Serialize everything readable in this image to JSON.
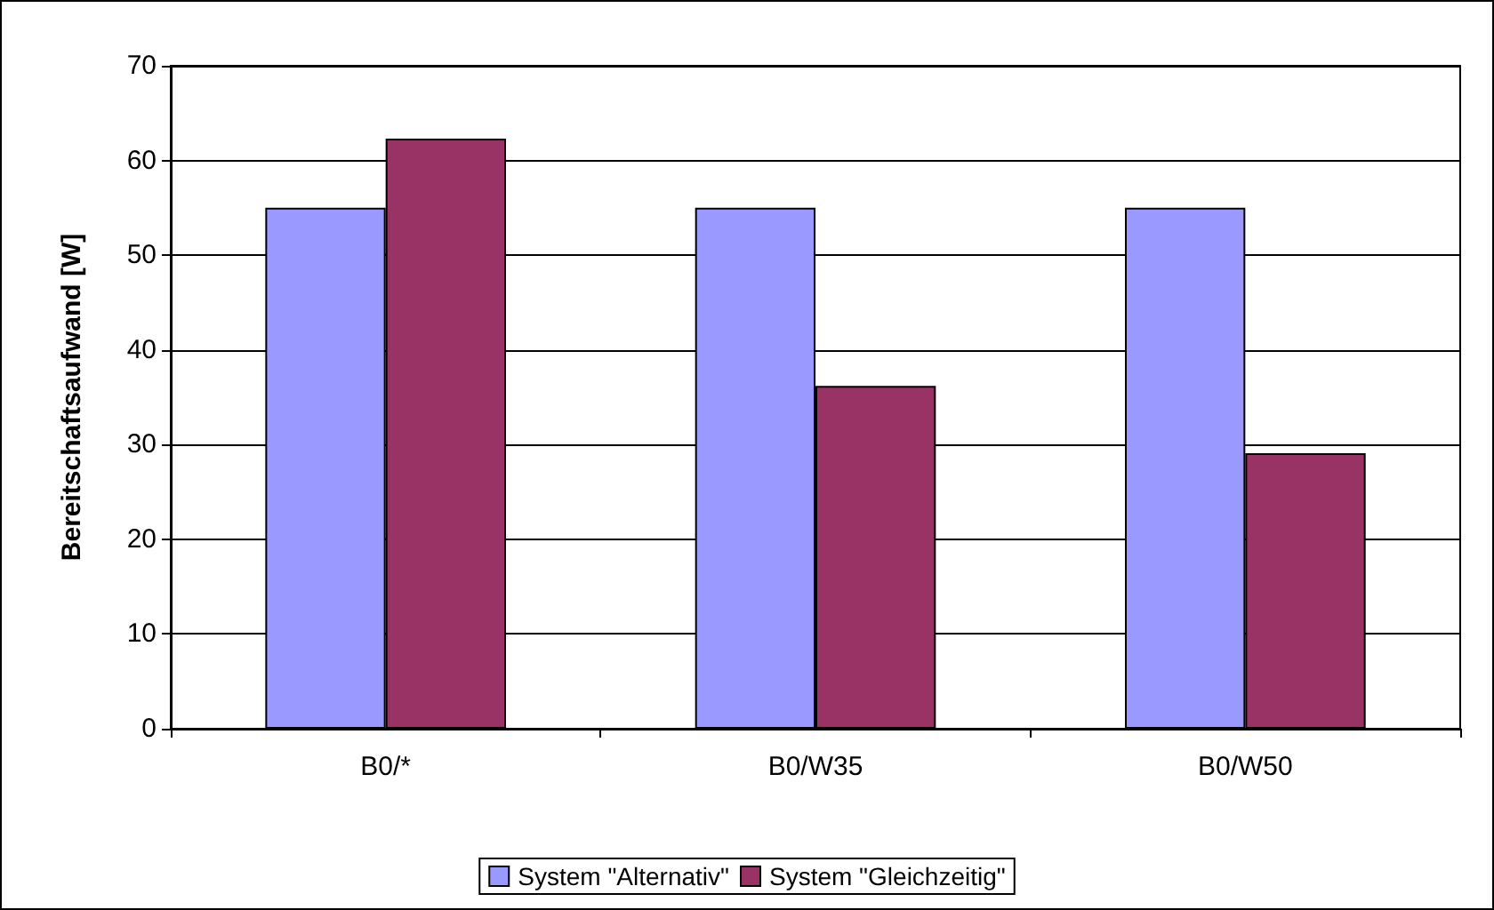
{
  "chart_data": {
    "type": "bar",
    "ylabel": "Bereitschaftsaufwand [W]",
    "categories": [
      "B0/*",
      "B0/W35",
      "B0/W50"
    ],
    "series": [
      {
        "name": "System \"Alternativ\"",
        "color": "#9999ff",
        "values": [
          55,
          55,
          55
        ]
      },
      {
        "name": "System \"Gleichzeitig\"",
        "color": "#993366",
        "values": [
          62.3,
          36.2,
          29.1
        ]
      }
    ],
    "ylim": [
      0,
      70
    ],
    "yticks": [
      0,
      10,
      20,
      30,
      40,
      50,
      60,
      70
    ],
    "grid": "y",
    "legend": "bottom"
  }
}
